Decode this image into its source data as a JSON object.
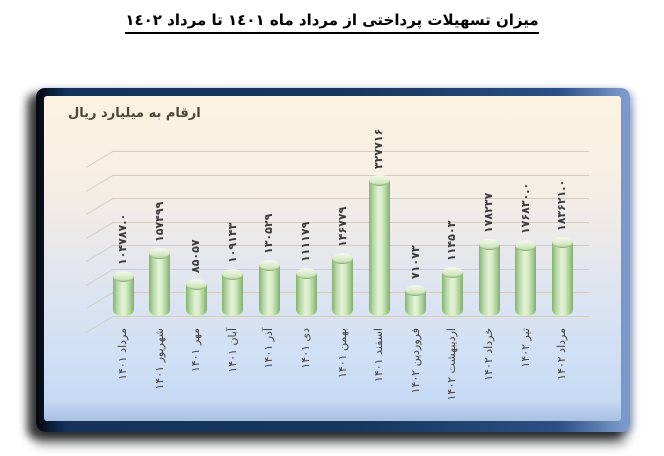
{
  "page": {
    "title": "میزان تسهیلات پرداختی از مرداد ماه ١٤٠١ تا مرداد ١٤٠٢"
  },
  "chart": {
    "unit_label": "ارقام به میلیارد ریال"
  },
  "chart_data": {
    "type": "bar",
    "bar_style": "cylinder-3d",
    "title": "میزان تسهیلات پرداختی از مرداد ماه ١٤٠١ تا مرداد ١٤٠٢",
    "ylabel": "ارقام به میلیارد ریال",
    "categories": [
      "مرداد ۱۴۰۱",
      "شهریور ۱۴۰۱",
      "مهر ۱۴۰۱",
      "آبان ۱۴۰۱",
      "آذر ۱۴۰۱",
      "دی ۱۴۰۱",
      "بهمن ۱۴۰۱",
      "اسفند ۱۴۰۱",
      "فروردین ۱۴۰۲",
      "اردیبهشت ۱۴۰۲",
      "خرداد ۱۴۰۲",
      "تیر ۱۴۰۲",
      "مرداد ۱۴۰۲"
    ],
    "values": [
      104787.0,
      157499,
      85057,
      109143,
      130529,
      111179,
      146779,
      327716,
      71073,
      114503,
      178237,
      176830.0,
      183621.0
    ],
    "value_labels": [
      "۱۰۴۷۸۷.۰",
      "۱۵۷۴۹۹",
      "۸۵۰۵۷",
      "۱۰۹۱۴۳",
      "۱۳۰۵۲۹",
      "۱۱۱۱۷۹",
      "۱۴۶۷۷۹",
      "۳۲۷۷۱۶",
      "۷۱۰۷۳",
      "۱۱۴۵۰۳",
      "۱۷۸۲۳۷",
      "۱۷۶۸۳۰.۰",
      "۱۸۳۶۲۱.۰"
    ],
    "ylim": [
      0,
      327716
    ],
    "grid": true,
    "legend": false,
    "bar_color": "#c7e3b5",
    "background": "gradient-cream-to-blue"
  }
}
